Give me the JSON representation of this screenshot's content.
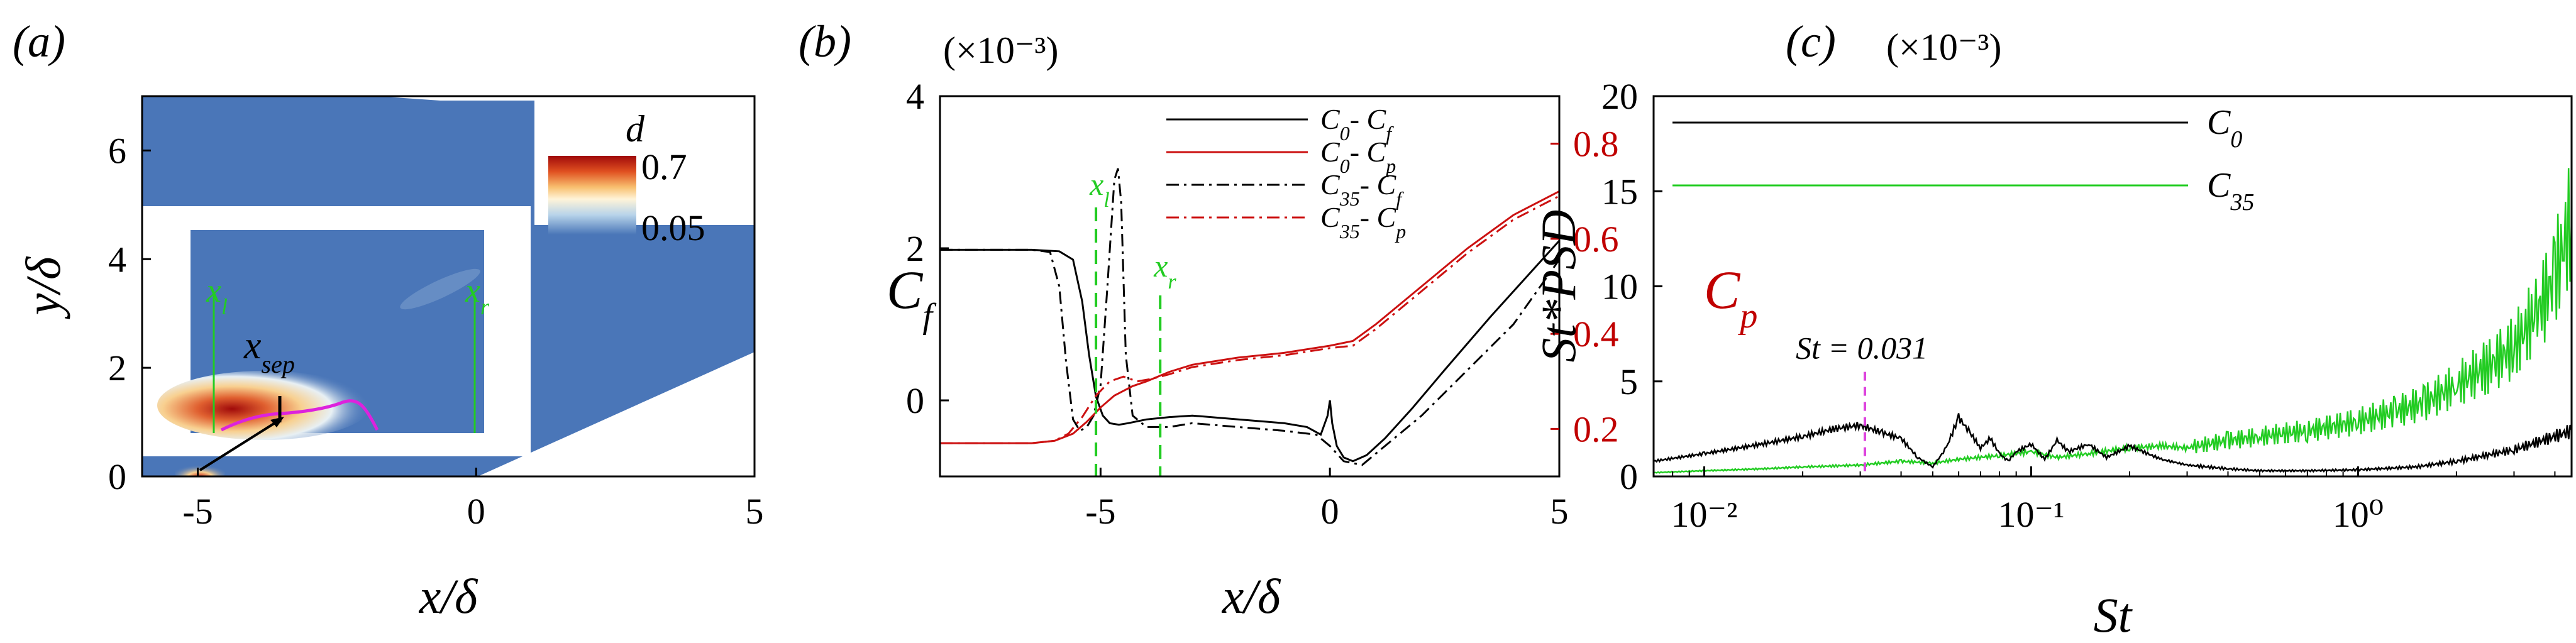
{
  "panels": {
    "a": "(a)",
    "b": "(b)",
    "c": "(c)"
  },
  "multipliers": {
    "b": "(×10⁻³)",
    "c": "(×10⁻³)"
  },
  "colors": {
    "field_blue": "#4a76b8",
    "c0": "#000000",
    "c35": "#22cc22",
    "cp": "#cc1111",
    "marker_green": "#22cc22",
    "psd_peak": "#dd44dd"
  },
  "chart_data": [
    {
      "type": "heatmap",
      "id": "a",
      "xlabel": "x/δ",
      "ylabel": "y/δ",
      "xlim": [
        -6,
        5
      ],
      "ylim": [
        0,
        7
      ],
      "xticks": [
        "-5",
        "0",
        "5"
      ],
      "yticks": [
        "0",
        "2",
        "4",
        "6"
      ],
      "colorbar": {
        "title": "d",
        "max_label": "0.7",
        "min_label": "0.05"
      },
      "inset": {
        "labels": [
          "x_l",
          "x_sep",
          "x_r"
        ]
      }
    },
    {
      "type": "line",
      "id": "b",
      "xlabel": "x/δ",
      "ylabel_left": "C_f",
      "ylabel_right": "C_p",
      "xlim": [
        -8.5,
        5
      ],
      "ylim_left": [
        -1,
        4
      ],
      "ylim_right": [
        0.1,
        0.9
      ],
      "xticks": [
        "-5",
        "0",
        "5"
      ],
      "yticks_left": [
        "0",
        "2",
        "4"
      ],
      "yticks_right": [
        "0.2",
        "0.4",
        "0.6",
        "0.8"
      ],
      "markers": [
        {
          "label": "x_l",
          "x": -5.1
        },
        {
          "label": "x_r",
          "x": -3.7
        }
      ],
      "legend": [
        "C₀- C_f",
        "C₀- C_p",
        "C₃₅- C_f",
        "C₃₅- C_p"
      ],
      "series": [
        {
          "name": "C0-Cf",
          "axis": "left",
          "style": "solid",
          "color": "#000000",
          "x": [
            -8.5,
            -6.5,
            -5.9,
            -5.6,
            -5.4,
            -5.25,
            -5.1,
            -4.95,
            -4.8,
            -4.6,
            -4.4,
            -4.0,
            -3.5,
            -3.0,
            -2.0,
            -1.0,
            -0.5,
            -0.2,
            -0.05,
            0.0,
            0.05,
            0.15,
            0.3,
            0.5,
            0.8,
            1.2,
            1.8,
            2.5,
            3.5,
            5.0
          ],
          "y": [
            1.98,
            1.98,
            1.96,
            1.85,
            1.3,
            0.6,
            0.05,
            -0.2,
            -0.3,
            -0.32,
            -0.3,
            -0.25,
            -0.22,
            -0.2,
            -0.25,
            -0.3,
            -0.35,
            -0.45,
            -0.2,
            0.0,
            -0.3,
            -0.6,
            -0.75,
            -0.8,
            -0.72,
            -0.5,
            -0.1,
            0.4,
            1.1,
            2.1
          ]
        },
        {
          "name": "C35-Cf",
          "axis": "left",
          "style": "dashdot",
          "color": "#000000",
          "x": [
            -8.5,
            -6.5,
            -6.1,
            -5.9,
            -5.75,
            -5.6,
            -5.45,
            -5.3,
            -5.15,
            -5.0,
            -4.85,
            -4.7,
            -4.62,
            -4.55,
            -4.45,
            -4.3,
            -4.0,
            -3.5,
            -3.0,
            -2.0,
            -1.0,
            -0.3,
            0.0,
            0.3,
            0.7,
            1.2,
            2.0,
            3.0,
            4.0,
            5.0
          ],
          "y": [
            1.98,
            1.98,
            1.95,
            1.5,
            0.5,
            -0.25,
            -0.4,
            -0.35,
            -0.2,
            0.2,
            1.5,
            2.9,
            3.05,
            2.6,
            0.6,
            -0.2,
            -0.35,
            -0.35,
            -0.3,
            -0.35,
            -0.4,
            -0.45,
            -0.6,
            -0.8,
            -0.85,
            -0.6,
            -0.2,
            0.4,
            1.0,
            1.85
          ]
        },
        {
          "name": "C0-Cp",
          "axis": "right",
          "style": "solid",
          "color": "#cc1111",
          "x": [
            -8.5,
            -6.5,
            -6.0,
            -5.6,
            -5.3,
            -5.0,
            -4.7,
            -4.3,
            -4.0,
            -3.5,
            -3.0,
            -2.0,
            -1.0,
            0.0,
            0.5,
            1.0,
            2.0,
            3.0,
            4.0,
            5.0
          ],
          "y": [
            0.17,
            0.17,
            0.175,
            0.19,
            0.215,
            0.245,
            0.27,
            0.29,
            0.3,
            0.32,
            0.335,
            0.35,
            0.36,
            0.375,
            0.385,
            0.42,
            0.5,
            0.58,
            0.65,
            0.7
          ]
        },
        {
          "name": "C35-Cp",
          "axis": "right",
          "style": "dashdot",
          "color": "#cc1111",
          "x": [
            -8.5,
            -6.5,
            -6.0,
            -5.7,
            -5.4,
            -5.1,
            -4.8,
            -4.5,
            -4.2,
            -3.9,
            -3.5,
            -3.0,
            -2.0,
            -1.0,
            0.0,
            0.5,
            1.0,
            2.0,
            3.0,
            4.0,
            5.0
          ],
          "y": [
            0.17,
            0.17,
            0.175,
            0.19,
            0.225,
            0.27,
            0.3,
            0.31,
            0.3,
            0.305,
            0.315,
            0.33,
            0.345,
            0.355,
            0.37,
            0.375,
            0.41,
            0.49,
            0.57,
            0.64,
            0.69
          ]
        }
      ]
    },
    {
      "type": "line",
      "id": "c",
      "xlabel": "St",
      "ylabel": "St*PSD",
      "xscale": "log",
      "xlim": [
        0.007,
        4.5
      ],
      "ylim": [
        0,
        20
      ],
      "xticks": [
        0.01,
        0.1,
        1
      ],
      "xtick_labels": [
        "10⁻²",
        "10⁻¹",
        "10⁰"
      ],
      "yticks": [
        "0",
        "5",
        "10",
        "15",
        "20"
      ],
      "annotation": {
        "text": "St = 0.031",
        "x": 0.031
      },
      "legend": [
        "C₀",
        "C₃₅"
      ],
      "series": [
        {
          "name": "C0",
          "color": "#000000",
          "x": [
            0.007,
            0.01,
            0.015,
            0.02,
            0.025,
            0.03,
            0.035,
            0.04,
            0.045,
            0.05,
            0.055,
            0.06,
            0.065,
            0.07,
            0.075,
            0.08,
            0.085,
            0.09,
            0.1,
            0.11,
            0.12,
            0.13,
            0.15,
            0.17,
            0.2,
            0.25,
            0.3,
            0.4,
            0.5,
            0.7,
            1.0,
            1.5,
            2.0,
            3.0,
            4.5
          ],
          "y": [
            0.8,
            1.2,
            1.7,
            2.1,
            2.5,
            2.7,
            2.3,
            2.0,
            1.0,
            0.5,
            1.5,
            3.1,
            2.3,
            1.5,
            2.0,
            1.2,
            0.8,
            1.3,
            1.7,
            0.9,
            1.9,
            1.3,
            1.7,
            1.0,
            1.6,
            0.9,
            0.6,
            0.4,
            0.3,
            0.3,
            0.35,
            0.5,
            0.8,
            1.4,
            2.4
          ]
        },
        {
          "name": "C35",
          "color": "#22cc22",
          "x": [
            0.007,
            0.01,
            0.015,
            0.02,
            0.025,
            0.03,
            0.04,
            0.05,
            0.06,
            0.08,
            0.1,
            0.12,
            0.15,
            0.2,
            0.25,
            0.3,
            0.4,
            0.5,
            0.7,
            1.0,
            1.3,
            1.6,
            2.0,
            2.5,
            3.0,
            3.5,
            4.0,
            4.5
          ],
          "y": [
            0.2,
            0.3,
            0.4,
            0.5,
            0.55,
            0.6,
            0.8,
            0.7,
            0.9,
            1.1,
            1.3,
            1.0,
            1.2,
            1.5,
            1.6,
            1.5,
            1.9,
            2.1,
            2.4,
            2.9,
            3.4,
            3.9,
            4.8,
            5.8,
            6.8,
            8.5,
            10.5,
            13.5
          ]
        }
      ]
    }
  ]
}
